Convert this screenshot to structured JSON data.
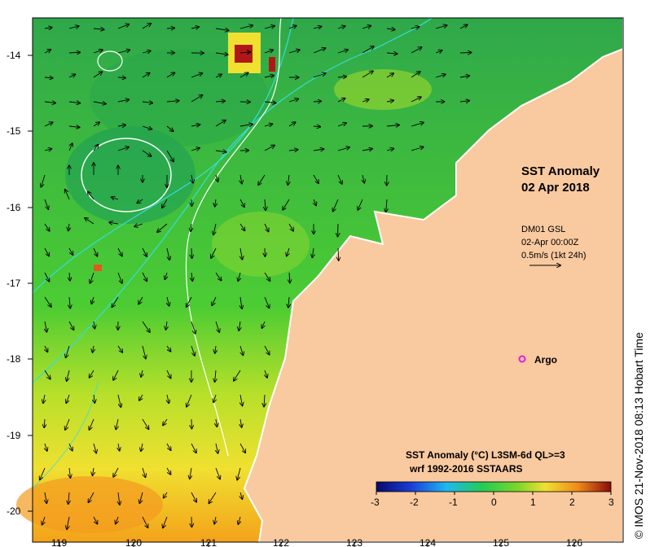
{
  "map": {
    "title_line1": "SST Anomaly",
    "title_line2": "02 Apr 2018",
    "current_source": "DM01 GSL",
    "current_time": "02-Apr 00:00Z",
    "current_scale": "0.5m/s (1kt 24h)",
    "argo_label": "Argo",
    "colorbar_title": "SST Anomaly (°C) L3SM-6d QL>=3",
    "colorbar_subtitle": "wrf 1992-2016 SSTAARS",
    "credit": "© IMOS 21-Nov-2018 08:13 Hobart Time",
    "lat_ticks": [
      "-14",
      "-15",
      "-16",
      "-17",
      "-18",
      "-19",
      "-20"
    ],
    "lon_ticks": [
      "119",
      "120",
      "121",
      "122",
      "123",
      "124",
      "125",
      "126"
    ],
    "colorbar_ticks": [
      "-3",
      "-2",
      "-1",
      "0",
      "1",
      "2",
      "3"
    ],
    "colors": {
      "land": "#f9c99f",
      "anomaly_neutral": "#33cc33",
      "anomaly_positive": "#f2e22a",
      "anomaly_hot": "#a50f15",
      "current_contour": "#33dddd",
      "argo_marker": "#dd22dd"
    }
  }
}
